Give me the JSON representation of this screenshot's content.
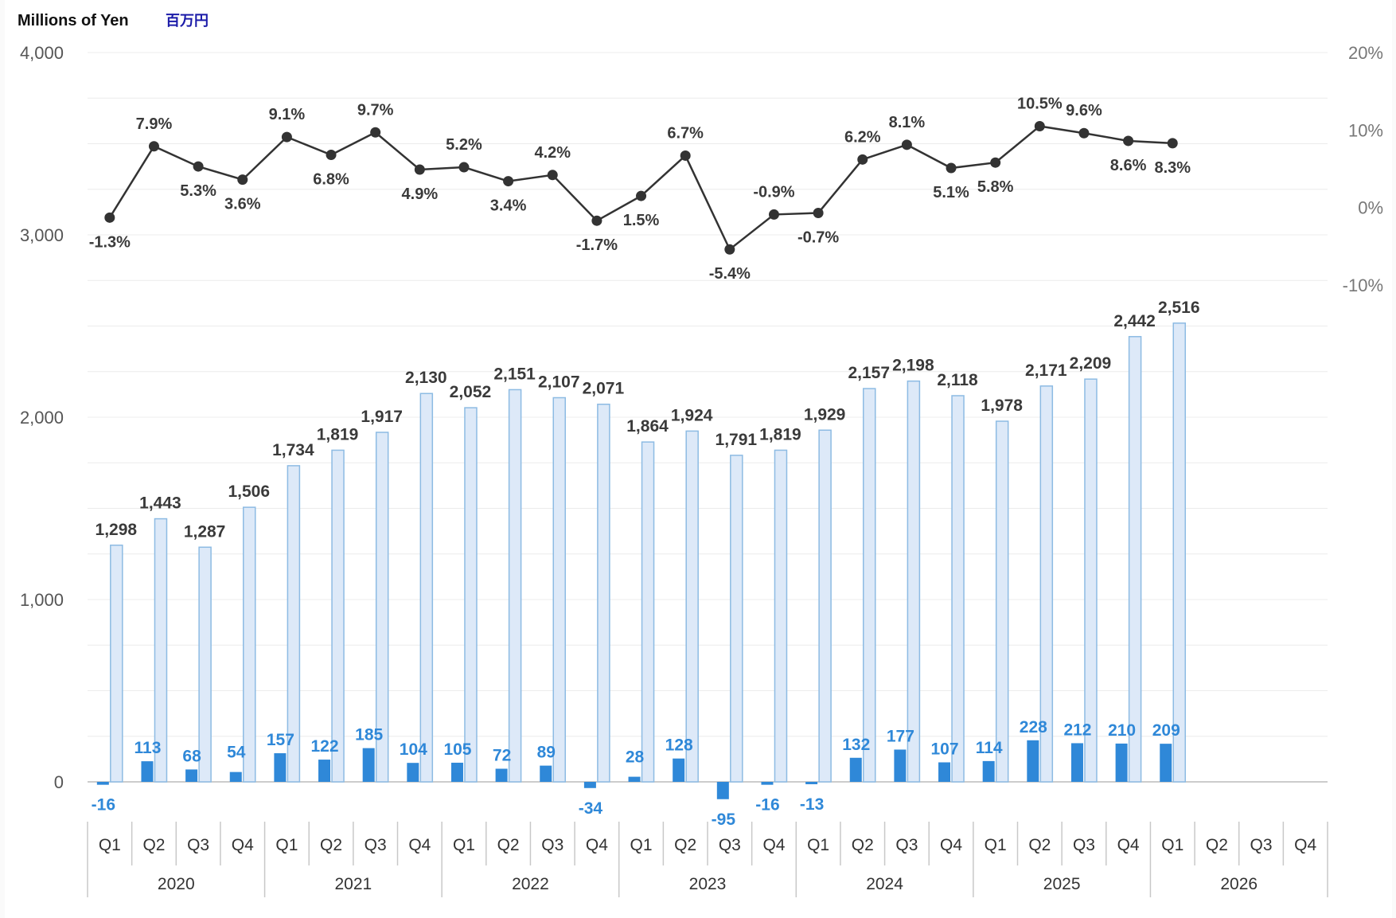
{
  "unit_label": "Millions of Yen",
  "unit_label_ja": "百万円",
  "colors": {
    "revenue_fill": "#dde9f8",
    "revenue_stroke": "#8dbbe3",
    "operating_fill": "#2f88d8",
    "line": "#333333",
    "grid": "#ececec"
  },
  "chart_data": {
    "type": "bar",
    "categories": [
      "Q1",
      "Q2",
      "Q3",
      "Q4",
      "Q1",
      "Q2",
      "Q3",
      "Q4",
      "Q1",
      "Q2",
      "Q3",
      "Q4",
      "Q1",
      "Q2",
      "Q3",
      "Q4",
      "Q1",
      "Q2",
      "Q3",
      "Q4",
      "Q1",
      "Q2",
      "Q3",
      "Q4",
      "Q1",
      "Q2",
      "Q3",
      "Q4"
    ],
    "years": [
      "2020",
      "2021",
      "2022",
      "2023",
      "2024",
      "2025",
      "2026"
    ],
    "y_left": {
      "ticks": [
        "0",
        "1,000",
        "2,000",
        "3,000",
        "4,000"
      ],
      "ylim": [
        0,
        4000
      ]
    },
    "y_right": {
      "ticks": [
        "-10%",
        "0%",
        "10%",
        "20%"
      ],
      "ylim": [
        -10,
        20
      ],
      "range_position": "top"
    },
    "grid": true,
    "series": [
      {
        "type": "bar",
        "values": [
          1298,
          1443,
          1287,
          1506,
          1734,
          1819,
          1917,
          2130,
          2052,
          2151,
          2107,
          2071,
          1864,
          1924,
          1791,
          1819,
          1929,
          2157,
          2198,
          2118,
          1978,
          2171,
          2209,
          2442,
          2516,
          null,
          null,
          null
        ],
        "labels": [
          "1,298",
          "1,443",
          "1,287",
          "1,506",
          "1,734",
          "1,819",
          "1,917",
          "2,130",
          "2,052",
          "2,151",
          "2,107",
          "2,071",
          "1,864",
          "1,924",
          "1,791",
          "1,819",
          "1,929",
          "2,157",
          "2,198",
          "2,118",
          "1,978",
          "2,171",
          "2,209",
          "2,442",
          "2,516",
          "",
          "",
          ""
        ]
      },
      {
        "type": "bar",
        "values": [
          -16,
          113,
          68,
          54,
          157,
          122,
          185,
          104,
          105,
          72,
          89,
          -34,
          28,
          128,
          -95,
          -16,
          -13,
          132,
          177,
          107,
          114,
          228,
          212,
          210,
          209,
          null,
          null,
          null
        ],
        "labels": [
          "-16",
          "113",
          "68",
          "54",
          "157",
          "122",
          "185",
          "104",
          "105",
          "72",
          "89",
          "-34",
          "28",
          "128",
          "-95",
          "-16",
          "-13",
          "132",
          "177",
          "107",
          "114",
          "228",
          "212",
          "210",
          "209",
          "",
          "",
          ""
        ]
      },
      {
        "type": "line",
        "axis": "right",
        "values": [
          -1.3,
          7.9,
          5.3,
          3.6,
          9.1,
          6.8,
          9.7,
          4.9,
          5.2,
          3.4,
          4.2,
          -1.7,
          1.5,
          6.7,
          -5.4,
          -0.9,
          -0.7,
          6.2,
          8.1,
          5.1,
          5.8,
          10.5,
          9.6,
          8.6,
          8.3,
          null,
          null,
          null
        ],
        "labels": [
          "-1.3%",
          "7.9%",
          "5.3%",
          "3.6%",
          "9.1%",
          "6.8%",
          "9.7%",
          "4.9%",
          "5.2%",
          "3.4%",
          "4.2%",
          "-1.7%",
          "1.5%",
          "6.7%",
          "-5.4%",
          "-0.9%",
          "-0.7%",
          "6.2%",
          "8.1%",
          "5.1%",
          "5.8%",
          "10.5%",
          "9.6%",
          "8.6%",
          "8.3%",
          "",
          "",
          ""
        ]
      }
    ]
  }
}
